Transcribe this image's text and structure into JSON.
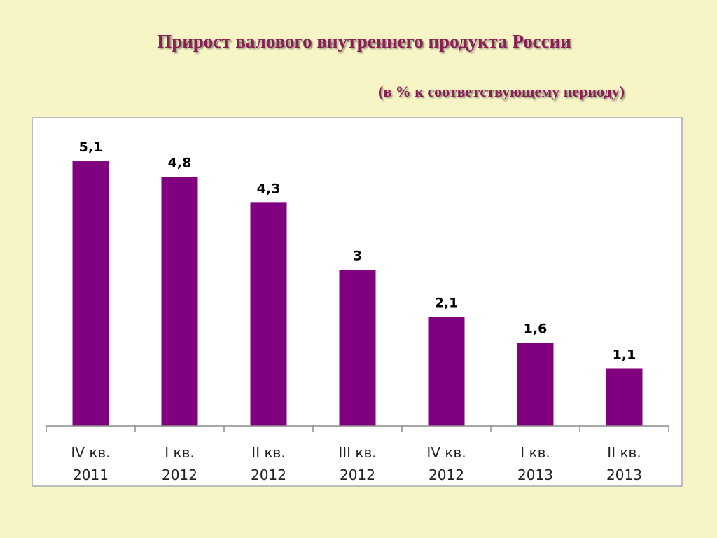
{
  "title": "Прирост валового внутреннего продукта России",
  "subtitle": "(в % к соответствующему периоду)",
  "chart_data": {
    "type": "bar",
    "categories": [
      [
        "IV кв.",
        "2011"
      ],
      [
        "I кв.",
        "2012"
      ],
      [
        "II кв.",
        "2012"
      ],
      [
        "III кв.",
        "2012"
      ],
      [
        "IV кв.",
        "2012"
      ],
      [
        "I кв.",
        "2013"
      ],
      [
        "II кв.",
        "2013"
      ]
    ],
    "values": [
      5.1,
      4.8,
      4.3,
      3,
      2.1,
      1.6,
      1.1
    ],
    "value_labels": [
      "5,1",
      "4,8",
      "4,3",
      "3",
      "2,1",
      "1,6",
      "1,1"
    ],
    "ylim": [
      0,
      5.6
    ],
    "bar_color": "#800080",
    "grid": false,
    "legend": "none"
  }
}
